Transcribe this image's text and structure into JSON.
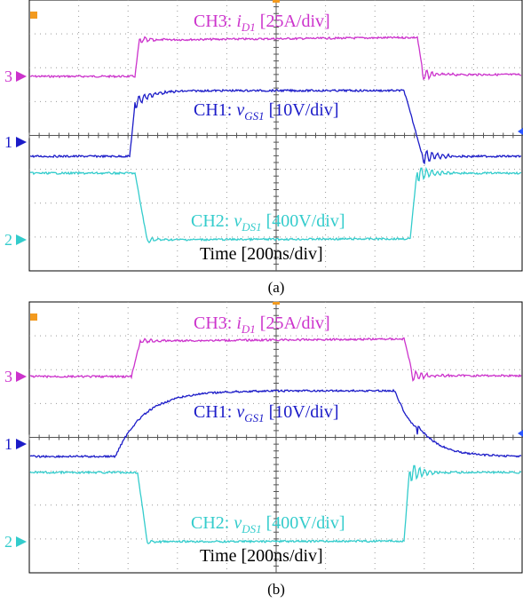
{
  "panels": [
    {
      "caption": "(a)",
      "ch3": {
        "prefix": "CH3: ",
        "var": "i",
        "sub": "D1",
        "suffix": " [25A/div]"
      },
      "ch1": {
        "prefix": "CH1: ",
        "var": "v",
        "sub": "GS1",
        "suffix": " [10V/div]"
      },
      "ch2": {
        "prefix": "CH2: ",
        "var": "v",
        "sub": "DS1",
        "suffix": " [400V/div]"
      },
      "time": "Time [200ns/div]",
      "markers": [
        "3",
        "1",
        "2"
      ]
    },
    {
      "caption": "(b)",
      "ch3": {
        "prefix": "CH3: ",
        "var": "i",
        "sub": "D1",
        "suffix": " [25A/div]"
      },
      "ch1": {
        "prefix": "CH1: ",
        "var": "v",
        "sub": "GS1",
        "suffix": " [10V/div]"
      },
      "ch2": {
        "prefix": "CH2: ",
        "var": "v",
        "sub": "DS1",
        "suffix": " [400V/div]"
      },
      "time": "Time [200ns/div]",
      "markers": [
        "3",
        "1",
        "2"
      ]
    }
  ]
}
